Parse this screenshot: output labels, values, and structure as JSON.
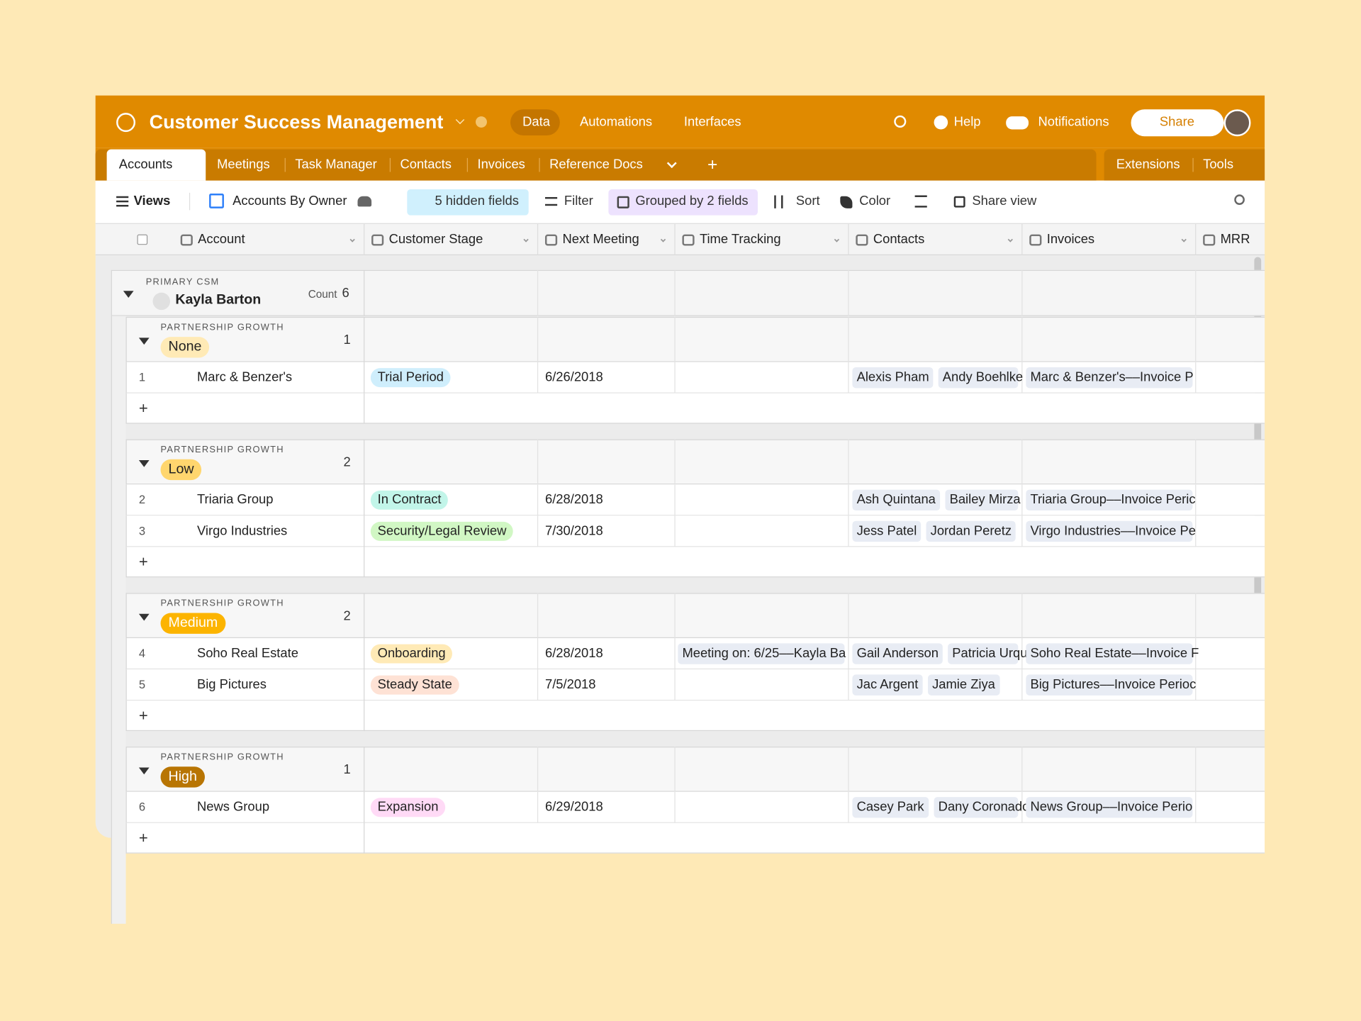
{
  "header": {
    "title": "Customer Success Management",
    "nav": [
      "Data",
      "Automations",
      "Interfaces"
    ],
    "help": "Help",
    "notifications": "Notifications",
    "share": "Share"
  },
  "tabs": {
    "items": [
      "Accounts",
      "Meetings",
      "Task Manager",
      "Contacts",
      "Invoices",
      "Reference Docs"
    ],
    "right": [
      "Extensions",
      "Tools"
    ]
  },
  "toolbar": {
    "views": "Views",
    "view_name": "Accounts By Owner",
    "hidden": "5 hidden fields",
    "filter": "Filter",
    "grouped": "Grouped by 2 fields",
    "sort": "Sort",
    "color": "Color",
    "share_view": "Share view"
  },
  "columns": [
    "Account",
    "Customer Stage",
    "Next Meeting",
    "Time Tracking",
    "Contacts",
    "Invoices",
    "MRR"
  ],
  "group": {
    "label": "PRIMARY CSM",
    "name": "Kayla Barton",
    "count_label": "Count",
    "count": "6",
    "subgroups": [
      {
        "label": "PARTNERSHIP GROWTH",
        "value": "None",
        "count": "1",
        "rows": [
          {
            "num": "1",
            "account": "Marc & Benzer's",
            "stage": "Trial Period",
            "date": "6/26/2018",
            "time": "",
            "contacts": [
              "Alexis Pham",
              "Andy Boehlke"
            ],
            "invoice": "Marc & Benzer's––Invoice P"
          }
        ]
      },
      {
        "label": "PARTNERSHIP GROWTH",
        "value": "Low",
        "count": "2",
        "rows": [
          {
            "num": "2",
            "account": "Triaria Group",
            "stage": "In Contract",
            "date": "6/28/2018",
            "time": "",
            "contacts": [
              "Ash Quintana",
              "Bailey Mirza"
            ],
            "invoice": "Triaria Group––Invoice Peric"
          },
          {
            "num": "3",
            "account": "Virgo Industries",
            "stage": "Security/Legal Review",
            "date": "7/30/2018",
            "time": "",
            "contacts": [
              "Jess Patel",
              "Jordan Peretz"
            ],
            "invoice": "Virgo Industries––Invoice Pe"
          }
        ]
      },
      {
        "label": "PARTNERSHIP GROWTH",
        "value": "Medium",
        "count": "2",
        "rows": [
          {
            "num": "4",
            "account": "Soho Real Estate",
            "stage": "Onboarding",
            "date": "6/28/2018",
            "time": "Meeting on: 6/25––Kayla Ba",
            "contacts": [
              "Gail Anderson",
              "Patricia Urqu"
            ],
            "invoice": "Soho Real Estate––Invoice F"
          },
          {
            "num": "5",
            "account": "Big Pictures",
            "stage": "Steady State",
            "date": "7/5/2018",
            "time": "",
            "contacts": [
              "Jac Argent",
              "Jamie Ziya"
            ],
            "invoice": "Big Pictures––Invoice Perioc"
          }
        ]
      },
      {
        "label": "PARTNERSHIP GROWTH",
        "value": "High",
        "count": "1",
        "rows": [
          {
            "num": "6",
            "account": "News Group",
            "stage": "Expansion",
            "date": "6/29/2018",
            "time": "",
            "contacts": [
              "Casey Park",
              "Dany Coronadc"
            ],
            "invoice": "News Group––Invoice Perio"
          }
        ]
      }
    ]
  }
}
